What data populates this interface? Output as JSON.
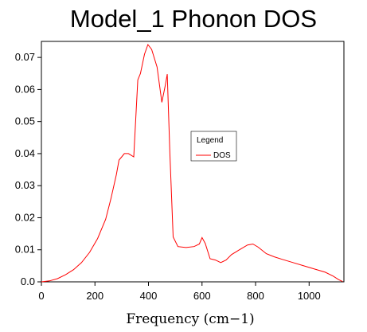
{
  "chart_data": {
    "type": "line",
    "title": "Model_1 Phonon DOS",
    "xlabel": "Frequency (cm−1)",
    "ylabel": "",
    "xlim": [
      0,
      1130
    ],
    "ylim": [
      0,
      0.075
    ],
    "xticks": [
      0,
      200,
      400,
      600,
      800,
      1000
    ],
    "xtick_labels": [
      "0",
      "200",
      "400",
      "600",
      "800",
      "1000"
    ],
    "yticks": [
      0.0,
      0.01,
      0.02,
      0.03,
      0.04,
      0.05,
      0.06,
      0.07
    ],
    "ytick_labels": [
      "0.0",
      "0.01",
      "0.02",
      "0.03",
      "0.04",
      "0.05",
      "0.06",
      "0.07"
    ],
    "grid": false,
    "legend": {
      "title": "Legend",
      "position": "center-right"
    },
    "series": [
      {
        "name": "DOS",
        "color": "#ff0000",
        "points": [
          [
            0,
            0.0
          ],
          [
            30,
            0.0003
          ],
          [
            60,
            0.001
          ],
          [
            90,
            0.0022
          ],
          [
            120,
            0.0038
          ],
          [
            150,
            0.006
          ],
          [
            180,
            0.0092
          ],
          [
            210,
            0.0135
          ],
          [
            240,
            0.0195
          ],
          [
            260,
            0.026
          ],
          [
            280,
            0.0335
          ],
          [
            290,
            0.038
          ],
          [
            300,
            0.039
          ],
          [
            310,
            0.04
          ],
          [
            325,
            0.04
          ],
          [
            345,
            0.039
          ],
          [
            360,
            0.063
          ],
          [
            370,
            0.065
          ],
          [
            385,
            0.071
          ],
          [
            398,
            0.074
          ],
          [
            412,
            0.0725
          ],
          [
            432,
            0.067
          ],
          [
            450,
            0.056
          ],
          [
            462,
            0.061
          ],
          [
            470,
            0.0648
          ],
          [
            480,
            0.04
          ],
          [
            492,
            0.014
          ],
          [
            510,
            0.011
          ],
          [
            540,
            0.0107
          ],
          [
            570,
            0.011
          ],
          [
            590,
            0.0118
          ],
          [
            600,
            0.0138
          ],
          [
            612,
            0.012
          ],
          [
            630,
            0.0072
          ],
          [
            650,
            0.0068
          ],
          [
            670,
            0.006
          ],
          [
            690,
            0.0068
          ],
          [
            710,
            0.0085
          ],
          [
            740,
            0.01
          ],
          [
            770,
            0.0115
          ],
          [
            790,
            0.0118
          ],
          [
            810,
            0.0108
          ],
          [
            840,
            0.0088
          ],
          [
            870,
            0.0078
          ],
          [
            900,
            0.007
          ],
          [
            940,
            0.006
          ],
          [
            980,
            0.005
          ],
          [
            1020,
            0.004
          ],
          [
            1060,
            0.003
          ],
          [
            1090,
            0.0018
          ],
          [
            1110,
            0.0007
          ],
          [
            1125,
            0.0001
          ]
        ]
      }
    ]
  }
}
